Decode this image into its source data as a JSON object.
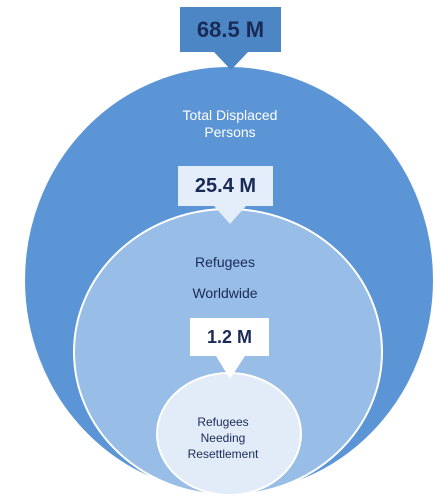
{
  "colors": {
    "outer_circle": "#5b95d5",
    "middle_circle": "#98bde6",
    "inner_circle": "#e1ecf8",
    "outer_box": "#4d86c5",
    "middle_box": "#e3eefa",
    "inner_box": "#ffffff",
    "text_dark": "#1a2a57"
  },
  "levels": [
    {
      "value": "68.5 M",
      "label_lines": [
        "Total Displaced",
        "Persons"
      ]
    },
    {
      "value": "25.4 M",
      "label_lines": [
        "Refugees",
        "Worldwide"
      ]
    },
    {
      "value": "1.2 M",
      "label_lines": [
        "Refugees",
        "Needing",
        "Resettlement"
      ]
    }
  ]
}
